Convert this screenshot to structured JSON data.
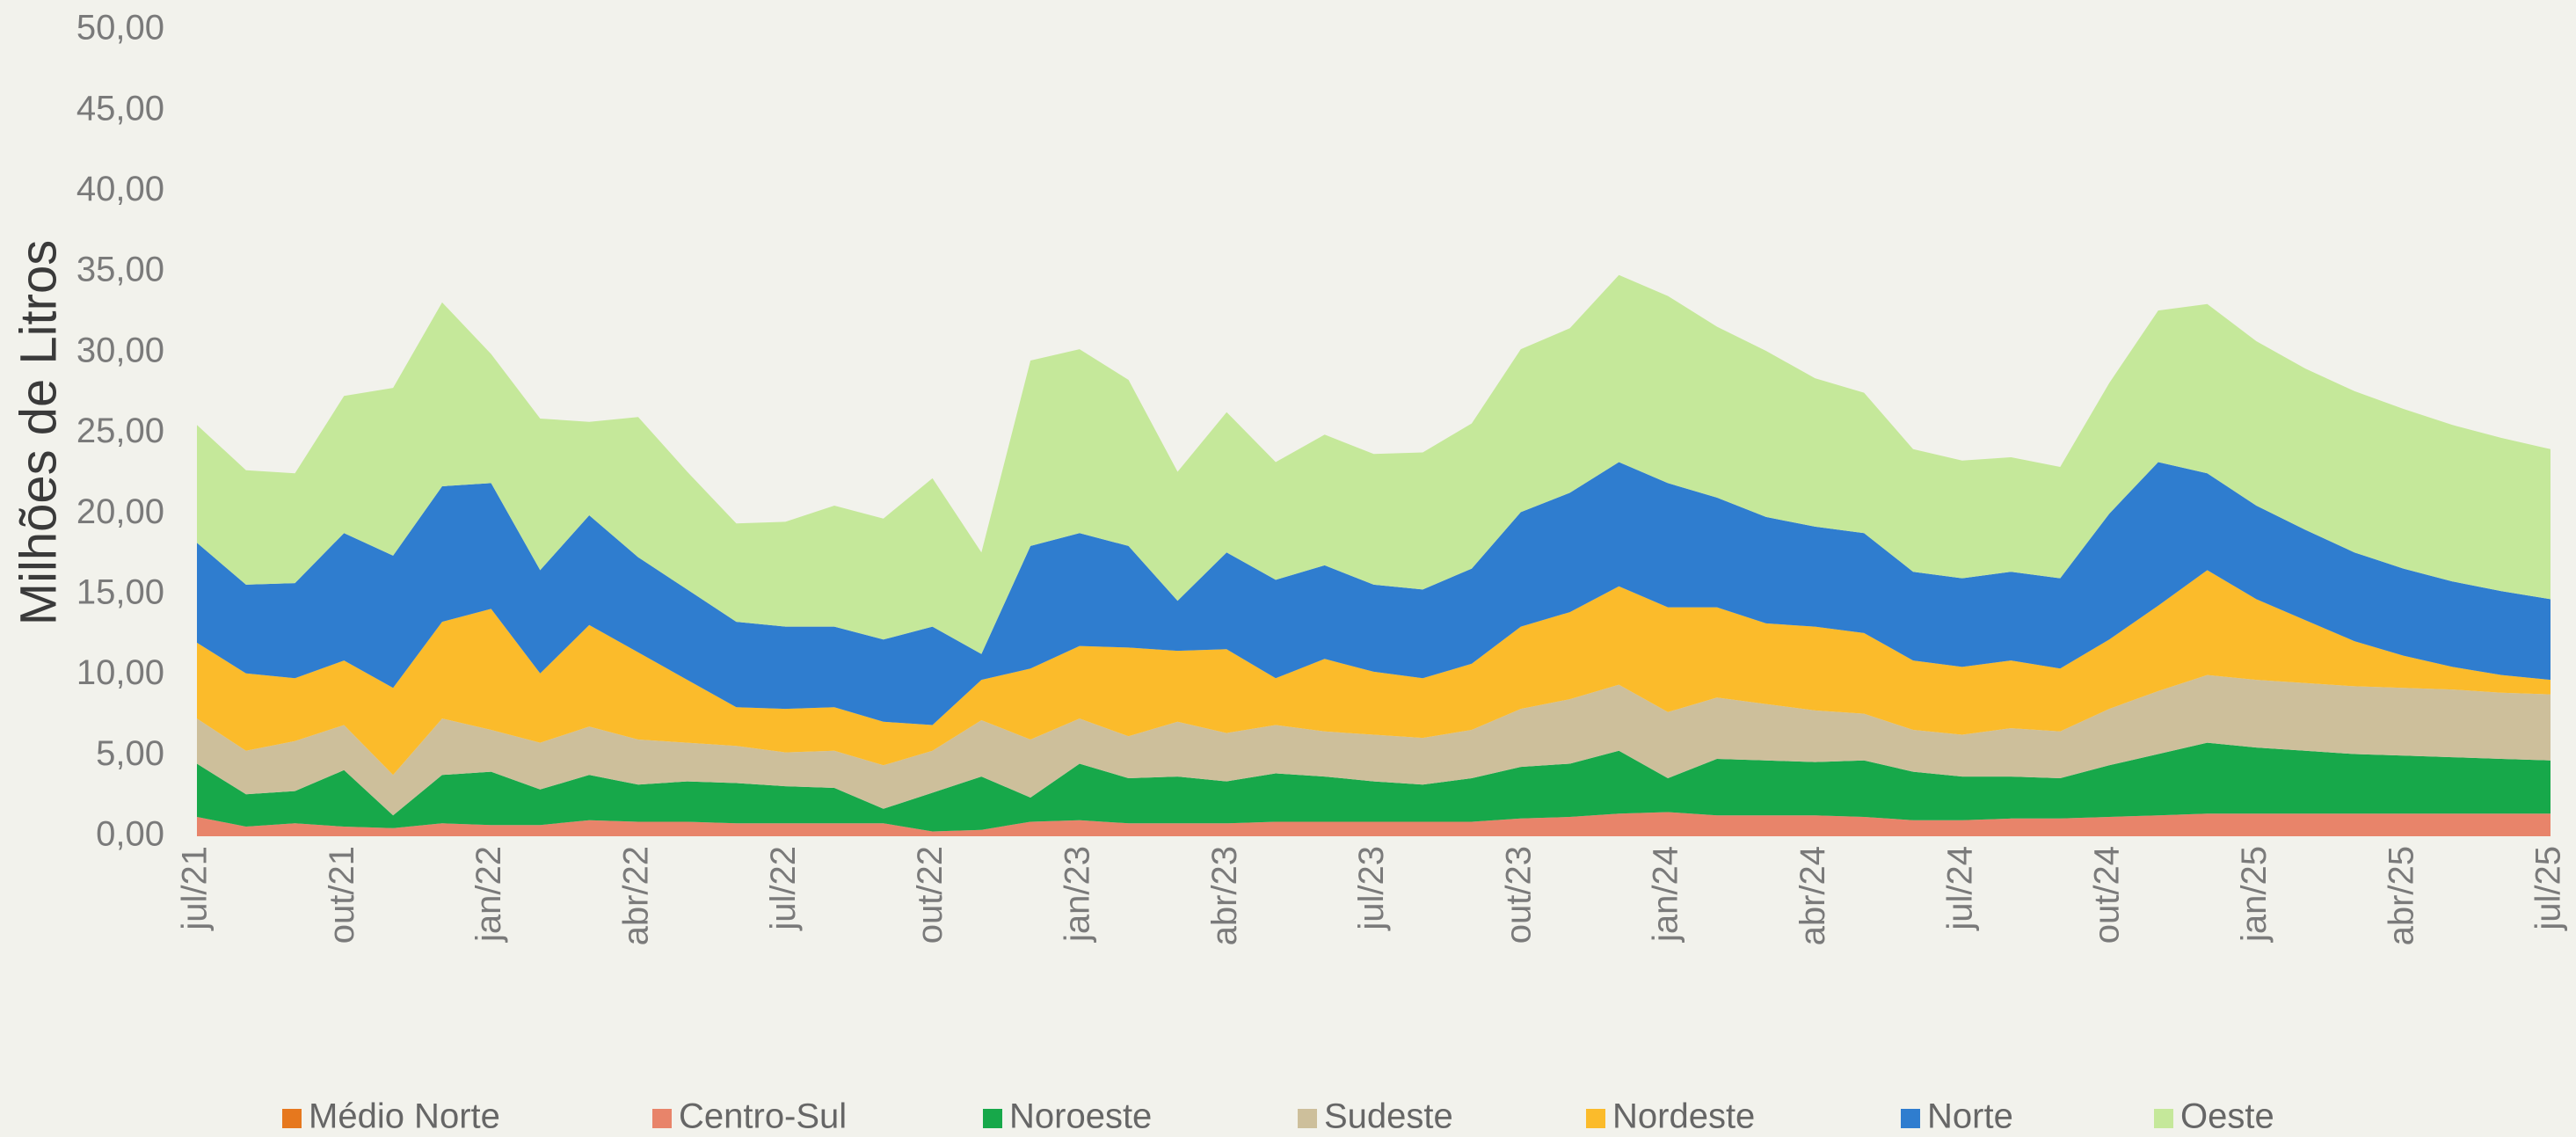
{
  "chart_data": {
    "type": "stacked_area",
    "y_label": "Milhões de Litros",
    "categories": [
      "jul/21",
      null,
      null,
      "out/21",
      null,
      null,
      "jan/22",
      null,
      null,
      "abr/22",
      null,
      null,
      "jul/22",
      null,
      null,
      "out/22",
      null,
      null,
      "jan/23",
      null,
      null,
      "abr/23",
      null,
      null,
      "jul/23",
      null,
      null,
      "out/23",
      null,
      null,
      "jan/24",
      null,
      null,
      "abr/24",
      null,
      null,
      "jul/24",
      null,
      null,
      "out/24",
      null,
      null,
      "jan/25",
      null,
      null,
      "abr/25",
      null,
      null,
      "jul/25"
    ],
    "ylim": [
      0,
      50
    ],
    "yticks": [
      {
        "value": 0,
        "label": "0,00"
      },
      {
        "value": 5,
        "label": "5,00"
      },
      {
        "value": 10,
        "label": "10,00"
      },
      {
        "value": 15,
        "label": "15,00"
      },
      {
        "value": 20,
        "label": "20,00"
      },
      {
        "value": 25,
        "label": "25,00"
      },
      {
        "value": 30,
        "label": "30,00"
      },
      {
        "value": 35,
        "label": "35,00"
      },
      {
        "value": 40,
        "label": "40,00"
      },
      {
        "value": 45,
        "label": "45,00"
      },
      {
        "value": 50,
        "label": "50,00"
      }
    ],
    "legend": "bottom",
    "series": [
      {
        "name": "Médio Norte",
        "color": "#e6781e",
        "values": [
          0,
          0,
          0,
          0,
          0,
          0,
          0,
          0,
          0,
          0,
          0,
          0,
          0,
          0,
          0,
          0,
          0,
          0,
          0,
          0,
          0,
          0,
          0,
          0,
          0,
          0,
          0,
          0,
          0,
          0,
          0,
          0,
          0,
          0,
          0,
          0,
          0,
          0,
          0,
          0,
          0,
          0,
          0,
          0,
          0,
          0,
          0,
          0,
          0
        ]
      },
      {
        "name": "Centro-Sul",
        "color": "#e8846a",
        "values": [
          1.2,
          0.6,
          0.8,
          0.6,
          0.5,
          0.8,
          0.7,
          0.7,
          1.0,
          0.9,
          0.9,
          0.8,
          0.8,
          0.8,
          0.8,
          0.3,
          0.4,
          0.9,
          1.0,
          0.8,
          0.8,
          0.8,
          0.9,
          0.9,
          0.9,
          0.9,
          0.9,
          1.1,
          1.2,
          1.4,
          1.5,
          1.3,
          1.3,
          1.3,
          1.2,
          1.0,
          1.0,
          1.1,
          1.1,
          1.2,
          1.3,
          1.4,
          1.4,
          1.4,
          1.4,
          1.4,
          1.4,
          1.4,
          1.4
        ]
      },
      {
        "name": "Noroeste",
        "color": "#17a84a",
        "values": [
          3.3,
          2.0,
          2.0,
          3.5,
          0.8,
          3.0,
          3.3,
          2.2,
          2.8,
          2.3,
          2.5,
          2.5,
          2.3,
          2.2,
          0.9,
          2.4,
          3.3,
          1.5,
          3.5,
          2.8,
          2.9,
          2.6,
          3.0,
          2.8,
          2.5,
          2.3,
          2.7,
          3.2,
          3.3,
          3.9,
          2.1,
          3.5,
          3.4,
          3.3,
          3.5,
          3.0,
          2.7,
          2.6,
          2.5,
          3.2,
          3.8,
          4.4,
          4.1,
          3.9,
          3.7,
          3.6,
          3.5,
          3.4,
          3.3
        ]
      },
      {
        "name": "Sudeste",
        "color": "#cdbf9b",
        "values": [
          2.8,
          2.7,
          3.1,
          2.8,
          2.5,
          3.5,
          2.6,
          2.9,
          3.0,
          2.8,
          2.4,
          2.3,
          2.1,
          2.3,
          2.7,
          2.6,
          3.5,
          3.6,
          2.8,
          2.6,
          3.4,
          3.0,
          3.0,
          2.8,
          2.9,
          2.9,
          3.0,
          3.6,
          4.0,
          4.1,
          4.1,
          3.8,
          3.5,
          3.2,
          2.9,
          2.6,
          2.6,
          3.0,
          2.9,
          3.5,
          3.9,
          4.2,
          4.2,
          4.2,
          4.2,
          4.2,
          4.2,
          4.1,
          4.1
        ]
      },
      {
        "name": "Nordeste",
        "color": "#fbbb2b",
        "values": [
          4.7,
          4.8,
          3.9,
          4.0,
          5.4,
          6.0,
          7.5,
          4.3,
          6.3,
          5.4,
          3.9,
          2.4,
          2.7,
          2.7,
          2.7,
          1.6,
          2.5,
          4.4,
          4.5,
          5.5,
          4.4,
          5.2,
          2.9,
          4.5,
          3.9,
          3.7,
          4.1,
          5.1,
          5.4,
          6.1,
          6.5,
          5.6,
          5.0,
          5.2,
          5.0,
          4.3,
          4.2,
          4.2,
          3.9,
          4.3,
          5.3,
          6.5,
          5.0,
          3.9,
          2.8,
          2.0,
          1.4,
          1.1,
          0.9
        ]
      },
      {
        "name": "Norte",
        "color": "#2f7dcf",
        "values": [
          6.2,
          5.5,
          5.9,
          7.9,
          8.2,
          8.4,
          7.8,
          6.4,
          6.8,
          5.9,
          5.6,
          5.3,
          5.1,
          5.0,
          5.1,
          6.1,
          1.6,
          7.6,
          7.0,
          6.3,
          3.1,
          6.0,
          6.1,
          5.8,
          5.4,
          5.5,
          5.9,
          7.1,
          7.4,
          7.7,
          7.7,
          6.8,
          6.6,
          6.2,
          6.2,
          5.5,
          5.5,
          5.5,
          5.6,
          7.8,
          8.9,
          6.0,
          5.8,
          5.6,
          5.5,
          5.4,
          5.3,
          5.2,
          5.0
        ]
      },
      {
        "name": "Oeste",
        "color": "#c5e89a",
        "values": [
          7.3,
          7.1,
          6.8,
          8.5,
          10.4,
          11.4,
          8.0,
          9.4,
          5.8,
          8.7,
          7.3,
          6.1,
          6.5,
          7.5,
          7.5,
          9.2,
          6.3,
          11.5,
          11.4,
          10.3,
          8.0,
          8.7,
          7.3,
          8.1,
          8.1,
          8.5,
          9.0,
          10.1,
          10.2,
          11.6,
          11.6,
          10.6,
          10.3,
          9.2,
          8.7,
          7.6,
          7.3,
          7.1,
          6.9,
          8.1,
          9.4,
          10.5,
          10.2,
          10.0,
          10.0,
          9.9,
          9.7,
          9.5,
          9.3
        ]
      }
    ]
  }
}
